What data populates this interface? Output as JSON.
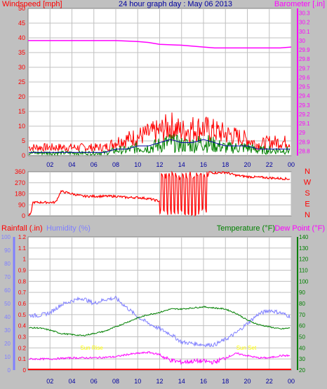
{
  "colors": {
    "background": "#c0c0c0",
    "plot_area": "#ffffff",
    "wind_left_axis": "#ff0000",
    "wind_gust": "#ff0000",
    "wind_avg": "#008000",
    "wind_smooth": "#0000a0",
    "barometer": "#ff00ff",
    "direction": "#ff0000",
    "rainfall": "#ff0000",
    "humidity": "#8080ff",
    "temperature": "#008000",
    "dew_point": "#ff00ff",
    "grid": "#c0c0c0",
    "title": "#0000a0",
    "sun": "#ffff00"
  },
  "header": {
    "windspeed_label": "Windspeed [mph]",
    "title": "24 hour graph day : May 06 2013",
    "barometer_label": "Barometer [.in]"
  },
  "panel3_labels": {
    "rainfall": "Rainfall (.in)",
    "humidity": "Humidity (%)",
    "temperature": "Temperature (°F)",
    "dew_point": "Dew Point (°F)",
    "sun_rise": "Sun Rise",
    "sun_set": "Sun Set"
  },
  "compass_labels": [
    "N",
    "W",
    "S",
    "E",
    "N"
  ],
  "chart_data": [
    {
      "type": "line",
      "title": "24 hour graph day : May 06 2013",
      "x_ticks": [
        "02",
        "04",
        "06",
        "08",
        "10",
        "12",
        "14",
        "16",
        "18",
        "20",
        "22",
        "00"
      ],
      "y_left": {
        "label": "Windspeed [mph]",
        "ticks": [
          0,
          5,
          10,
          15,
          20,
          25,
          30,
          35,
          40,
          45,
          50
        ],
        "range": [
          0,
          50
        ]
      },
      "y_right": {
        "label": "Barometer [.in]",
        "ticks": [
          "28.8",
          "28.9",
          "29",
          "29.1",
          "29.2",
          "29.3",
          "29.4",
          "29.5",
          "29.6",
          "29.7",
          "29.8",
          "29.9",
          "30",
          "30.1",
          "30.2",
          "30.3"
        ],
        "range": [
          28.75,
          30.35
        ]
      },
      "series": [
        {
          "name": "Windspeed gust",
          "hours": [
            0,
            3,
            6,
            7,
            8,
            9,
            10,
            11,
            12,
            12.5,
            13,
            14,
            15,
            16,
            17,
            18,
            19,
            20,
            21,
            22,
            23,
            24
          ],
          "values": [
            3,
            3,
            3,
            3,
            5,
            6,
            7,
            8,
            9,
            10,
            11,
            9,
            10,
            10,
            9,
            8,
            7,
            6,
            4,
            5,
            5,
            5
          ]
        },
        {
          "name": "Windspeed average",
          "hours": [
            0,
            3,
            6,
            7,
            8,
            9,
            10,
            11,
            12,
            13,
            14,
            15,
            16,
            17,
            18,
            19,
            20,
            21,
            22,
            23,
            24
          ],
          "values": [
            1,
            1,
            1,
            1,
            2,
            2,
            3,
            3,
            4,
            5,
            4,
            4,
            5,
            4,
            3,
            3,
            3,
            2,
            2,
            2,
            2
          ]
        },
        {
          "name": "Barometer",
          "hours": [
            0,
            2,
            4,
            6,
            8,
            10,
            11,
            12,
            14,
            16,
            17,
            18,
            20,
            22,
            23,
            24
          ],
          "values": [
            30.0,
            30.0,
            30.0,
            30.0,
            30.0,
            29.99,
            29.98,
            29.96,
            29.95,
            29.93,
            29.92,
            29.92,
            29.92,
            29.92,
            29.92,
            29.93
          ]
        }
      ]
    },
    {
      "type": "line",
      "x_ticks": [
        "02",
        "04",
        "06",
        "08",
        "10",
        "12",
        "14",
        "16",
        "18",
        "20",
        "22",
        "00"
      ],
      "y_left": {
        "ticks": [
          0,
          90,
          180,
          270,
          360
        ],
        "range": [
          0,
          360
        ]
      },
      "y_right_labels": [
        "N",
        "W",
        "S",
        "E",
        "N"
      ],
      "series": [
        {
          "name": "Wind direction",
          "hours": [
            0,
            0.3,
            0.4,
            1.5,
            2.5,
            3,
            3.5,
            4,
            5,
            6,
            7,
            8,
            9,
            10,
            11,
            12,
            13,
            14,
            15,
            16,
            16.5,
            17,
            18,
            19,
            20,
            22,
            24
          ],
          "values": [
            0,
            20,
            110,
            110,
            110,
            200,
            190,
            180,
            160,
            160,
            160,
            160,
            150,
            150,
            140,
            120,
            100,
            120,
            100,
            100,
            360,
            350,
            355,
            330,
            320,
            310,
            300
          ]
        }
      ]
    },
    {
      "type": "line",
      "x_ticks": [
        "02",
        "04",
        "06",
        "08",
        "10",
        "12",
        "14",
        "16",
        "18",
        "20",
        "22",
        "00"
      ],
      "y_left_rain": {
        "label": "Rainfall (.in)",
        "ticks": [
          "0",
          "0.1",
          "0.2",
          "0.3",
          "0.4",
          "0.5",
          "0.6",
          "0.7",
          "0.8",
          "0.9",
          "1",
          "1.1",
          "1.2"
        ],
        "range": [
          0,
          1.2
        ]
      },
      "y_left_humidity": {
        "label": "Humidity (%)",
        "ticks": [
          0,
          10,
          20,
          30,
          40,
          50,
          60,
          70,
          80,
          90,
          100
        ],
        "range": [
          0,
          100
        ]
      },
      "y_right": {
        "label": "Temperature (°F)",
        "ticks": [
          20,
          30,
          40,
          50,
          60,
          70,
          80,
          90,
          100,
          110,
          120,
          130,
          140
        ],
        "range": [
          20,
          140
        ]
      },
      "series": [
        {
          "name": "Rainfall",
          "hours": [
            0,
            24
          ],
          "values": [
            0,
            0
          ]
        },
        {
          "name": "Humidity",
          "hours": [
            0,
            1,
            2,
            3,
            4,
            5,
            6,
            7,
            8,
            9,
            10,
            11,
            12,
            13,
            14,
            15,
            16,
            17,
            18,
            19,
            20,
            21,
            22,
            23,
            24
          ],
          "values": [
            41,
            41,
            43,
            49,
            52,
            54,
            50,
            53,
            54,
            47,
            40,
            35,
            31,
            27,
            21,
            20,
            19,
            19,
            23,
            28,
            35,
            42,
            45,
            43,
            40
          ]
        },
        {
          "name": "Temperature",
          "hours": [
            0,
            1,
            2,
            3,
            4,
            5,
            6,
            7,
            8,
            9,
            10,
            11,
            12,
            13,
            14,
            15,
            16,
            17,
            18,
            19,
            20,
            21,
            22,
            23,
            24
          ],
          "values": [
            58,
            58,
            56,
            53,
            52,
            51,
            53,
            55,
            59,
            63,
            67,
            70,
            72,
            75,
            75,
            76,
            77,
            76,
            75,
            71,
            65,
            61,
            59,
            57,
            58
          ]
        },
        {
          "name": "Dew Point",
          "hours": [
            0,
            2,
            4,
            6,
            8,
            9,
            10,
            11,
            12,
            12.5,
            13,
            14,
            15,
            16,
            17,
            18,
            19,
            20,
            21,
            22,
            23,
            24
          ],
          "values": [
            30,
            30,
            31,
            31,
            32,
            34,
            35,
            36,
            34,
            31,
            29,
            27,
            28,
            28,
            27,
            31,
            35,
            33,
            31,
            31,
            33,
            33
          ]
        }
      ]
    }
  ]
}
